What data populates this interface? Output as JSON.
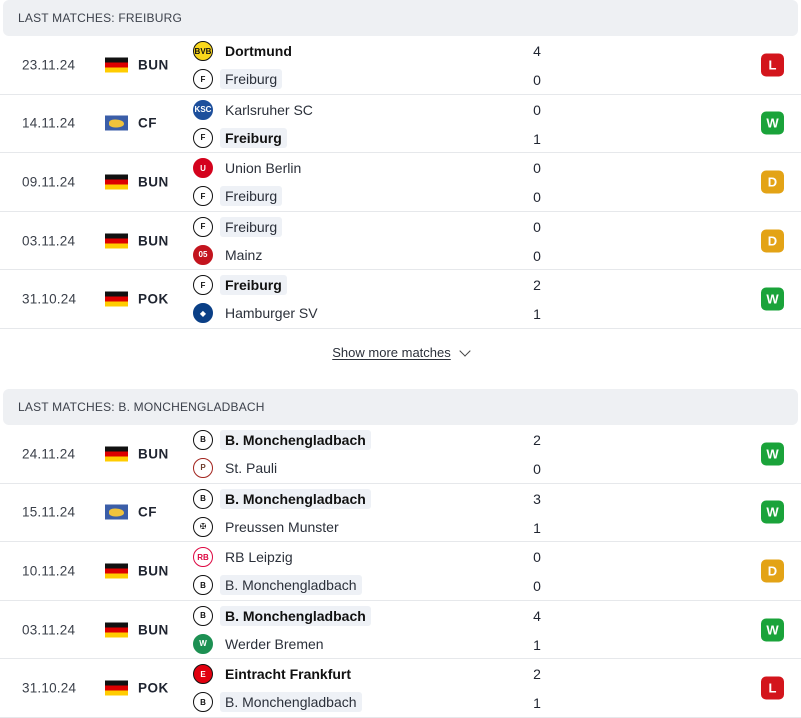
{
  "colors": {
    "win": "#1aa33a",
    "draw": "#e3a316",
    "loss": "#d3151c"
  },
  "sections": [
    {
      "title": "LAST MATCHES: FREIBURG",
      "matches": [
        {
          "date": "23.11.24",
          "comp": "BUN",
          "flag": "germany-flag",
          "t1": {
            "name": "Dortmund",
            "crest": "dortmund-crest",
            "bold": true,
            "hl": false
          },
          "t2": {
            "name": "Freiburg",
            "crest": "freiburg-crest",
            "bold": false,
            "hl": true
          },
          "s1": "4",
          "s2": "0",
          "result": "L"
        },
        {
          "date": "14.11.24",
          "comp": "CF",
          "flag": "world-flag",
          "t1": {
            "name": "Karlsruher SC",
            "crest": "karlsruher-crest",
            "bold": false,
            "hl": false
          },
          "t2": {
            "name": "Freiburg",
            "crest": "freiburg-crest",
            "bold": true,
            "hl": true
          },
          "s1": "0",
          "s2": "1",
          "result": "W"
        },
        {
          "date": "09.11.24",
          "comp": "BUN",
          "flag": "germany-flag",
          "t1": {
            "name": "Union Berlin",
            "crest": "union-berlin-crest",
            "bold": false,
            "hl": false
          },
          "t2": {
            "name": "Freiburg",
            "crest": "freiburg-crest",
            "bold": false,
            "hl": true
          },
          "s1": "0",
          "s2": "0",
          "result": "D"
        },
        {
          "date": "03.11.24",
          "comp": "BUN",
          "flag": "germany-flag",
          "t1": {
            "name": "Freiburg",
            "crest": "freiburg-crest",
            "bold": false,
            "hl": true
          },
          "t2": {
            "name": "Mainz",
            "crest": "mainz-crest",
            "bold": false,
            "hl": false
          },
          "s1": "0",
          "s2": "0",
          "result": "D"
        },
        {
          "date": "31.10.24",
          "comp": "POK",
          "flag": "germany-flag",
          "t1": {
            "name": "Freiburg",
            "crest": "freiburg-crest",
            "bold": true,
            "hl": true
          },
          "t2": {
            "name": "Hamburger SV",
            "crest": "hamburger-crest",
            "bold": false,
            "hl": false
          },
          "s1": "2",
          "s2": "1",
          "result": "W"
        }
      ],
      "show_more": "Show more matches"
    },
    {
      "title": "LAST MATCHES: B. MONCHENGLADBACH",
      "matches": [
        {
          "date": "24.11.24",
          "comp": "BUN",
          "flag": "germany-flag",
          "t1": {
            "name": "B. Monchengladbach",
            "crest": "gladbach-crest",
            "bold": true,
            "hl": true
          },
          "t2": {
            "name": "St. Pauli",
            "crest": "st-pauli-crest",
            "bold": false,
            "hl": false
          },
          "s1": "2",
          "s2": "0",
          "result": "W"
        },
        {
          "date": "15.11.24",
          "comp": "CF",
          "flag": "world-flag",
          "t1": {
            "name": "B. Monchengladbach",
            "crest": "gladbach-crest",
            "bold": true,
            "hl": true
          },
          "t2": {
            "name": "Preussen Munster",
            "crest": "preussen-crest",
            "bold": false,
            "hl": false
          },
          "s1": "3",
          "s2": "1",
          "result": "W"
        },
        {
          "date": "10.11.24",
          "comp": "BUN",
          "flag": "germany-flag",
          "t1": {
            "name": "RB Leipzig",
            "crest": "leipzig-crest",
            "bold": false,
            "hl": false
          },
          "t2": {
            "name": "B. Monchengladbach",
            "crest": "gladbach-crest",
            "bold": false,
            "hl": true
          },
          "s1": "0",
          "s2": "0",
          "result": "D"
        },
        {
          "date": "03.11.24",
          "comp": "BUN",
          "flag": "germany-flag",
          "t1": {
            "name": "B. Monchengladbach",
            "crest": "gladbach-crest",
            "bold": true,
            "hl": true
          },
          "t2": {
            "name": "Werder Bremen",
            "crest": "werder-crest",
            "bold": false,
            "hl": false
          },
          "s1": "4",
          "s2": "1",
          "result": "W"
        },
        {
          "date": "31.10.24",
          "comp": "POK",
          "flag": "germany-flag",
          "t1": {
            "name": "Eintracht Frankfurt",
            "crest": "frankfurt-crest",
            "bold": true,
            "hl": false
          },
          "t2": {
            "name": "B. Monchengladbach",
            "crest": "gladbach-crest",
            "bold": false,
            "hl": true
          },
          "s1": "2",
          "s2": "1",
          "result": "L"
        }
      ]
    }
  ]
}
